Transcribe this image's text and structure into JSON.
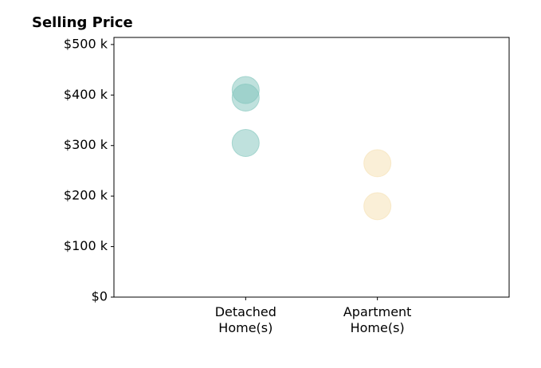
{
  "chart_data": {
    "type": "strip",
    "title": "Selling Price",
    "series": [
      {
        "name": "Detached\nHome(s)",
        "color": "#7fc4bb",
        "values": [
          410000,
          395000,
          305000
        ]
      },
      {
        "name": "Apartment\nHome(s)",
        "color": "#f5dfb0",
        "values": [
          265000,
          180000
        ]
      }
    ],
    "ylim": [
      0,
      514000
    ],
    "yticks": [
      {
        "value": 0,
        "label": "$0"
      },
      {
        "value": 100000,
        "label": "$100 k"
      },
      {
        "value": 200000,
        "label": "$200 k"
      },
      {
        "value": 300000,
        "label": "$300 k"
      },
      {
        "value": 400000,
        "label": "$400 k"
      },
      {
        "value": 500000,
        "label": "$500 k"
      }
    ]
  }
}
